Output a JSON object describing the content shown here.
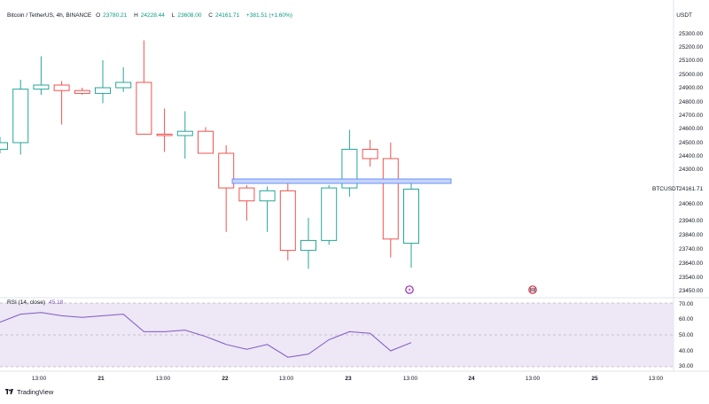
{
  "header": {
    "title": "Bitcoin / TetherUS, 4h, BINANCE",
    "open_key": "O",
    "open": "23780.21",
    "high_key": "H",
    "high": "24228.44",
    "low_key": "L",
    "low": "23608.00",
    "close_key": "C",
    "close": "24161.71",
    "change": "+381.51 (+1.60%)"
  },
  "currency": "USDT",
  "price_label": {
    "symbol": "BTCUSDT",
    "value": "24161.71"
  },
  "rsi_header": {
    "label": "RSI (14, close)",
    "value": "45.18"
  },
  "footer": {
    "brand": "TradingView"
  },
  "colors": {
    "up": "#26a69a",
    "down": "#ef5350",
    "rsi_line": "#7e57c2",
    "rsi_band": "#ede7f6",
    "zone": "#4f7ff6"
  },
  "chart_data": [
    {
      "type": "candlestick",
      "title": "Bitcoin / TetherUS, 4h, BINANCE",
      "x_ticks": [
        "13:00",
        "21",
        "13:00",
        "22",
        "13:00",
        "23",
        "13:00",
        "24",
        "13:00",
        "25",
        "13:00"
      ],
      "y_ticks": [
        "25300.00",
        "25200.00",
        "25100.00",
        "25000.00",
        "24900.00",
        "24800.00",
        "24700.00",
        "24600.00",
        "24500.00",
        "24400.00",
        "24300.00",
        "24060.00",
        "23940.00",
        "23840.00",
        "23740.00",
        "23640.00",
        "23540.00",
        "23450.00"
      ],
      "candles": [
        {
          "o": 24450,
          "h": 24540,
          "l": 24420,
          "c": 24500
        },
        {
          "o": 24500,
          "h": 24960,
          "l": 24410,
          "c": 24890
        },
        {
          "o": 24890,
          "h": 25130,
          "l": 24850,
          "c": 24920
        },
        {
          "o": 24920,
          "h": 24950,
          "l": 24630,
          "c": 24880
        },
        {
          "o": 24880,
          "h": 24900,
          "l": 24850,
          "c": 24860
        },
        {
          "o": 24860,
          "h": 25100,
          "l": 24790,
          "c": 24900
        },
        {
          "o": 24900,
          "h": 25050,
          "l": 24870,
          "c": 24940
        },
        {
          "o": 24940,
          "h": 25250,
          "l": 24560,
          "c": 24560
        },
        {
          "o": 24560,
          "h": 24750,
          "l": 24430,
          "c": 24550
        },
        {
          "o": 24550,
          "h": 24730,
          "l": 24380,
          "c": 24580
        },
        {
          "o": 24580,
          "h": 24610,
          "l": 24420,
          "c": 24420
        },
        {
          "o": 24420,
          "h": 24480,
          "l": 23860,
          "c": 24170
        },
        {
          "o": 24170,
          "h": 24190,
          "l": 23940,
          "c": 24080
        },
        {
          "o": 24080,
          "h": 24180,
          "l": 23860,
          "c": 24150
        },
        {
          "o": 24150,
          "h": 24230,
          "l": 23660,
          "c": 23730
        },
        {
          "o": 23730,
          "h": 23960,
          "l": 23600,
          "c": 23800
        },
        {
          "o": 23800,
          "h": 24190,
          "l": 23770,
          "c": 24170
        },
        {
          "o": 24170,
          "h": 24590,
          "l": 24110,
          "c": 24450
        },
        {
          "o": 24450,
          "h": 24520,
          "l": 24320,
          "c": 24380
        },
        {
          "o": 24380,
          "h": 24500,
          "l": 23680,
          "c": 23810
        },
        {
          "o": 23780.21,
          "h": 24228.44,
          "l": 23608.0,
          "c": 24161.71
        }
      ],
      "resistance_zone": {
        "from": 24160,
        "to": 24180
      },
      "last_price": 24161.71
    },
    {
      "type": "line",
      "title": "RSI (14, close)",
      "y_ticks": [
        "70.00",
        "60.00",
        "50.00",
        "40.00",
        "30.00"
      ],
      "ylim": [
        30,
        70
      ],
      "bands": [
        30,
        50,
        70
      ],
      "values": [
        58,
        63,
        64,
        62,
        61,
        62,
        63,
        52,
        52,
        53,
        49,
        44,
        41,
        44,
        36,
        38,
        47,
        52,
        51,
        40,
        45.18
      ]
    }
  ]
}
